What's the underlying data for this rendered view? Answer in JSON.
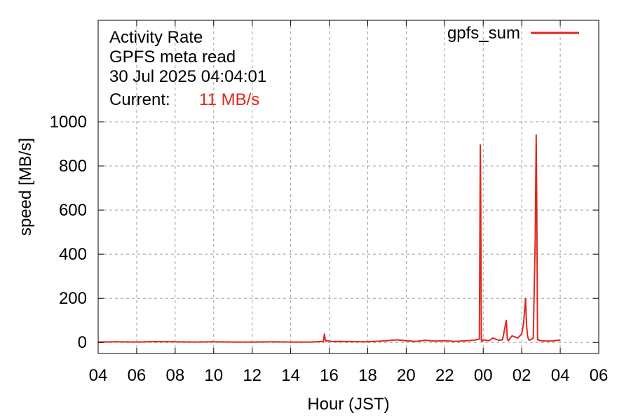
{
  "chart_data": {
    "type": "line",
    "title_lines": [
      "Activity Rate",
      "GPFS meta read",
      "30 Jul 2025 04:04:01"
    ],
    "current_label": "Current:",
    "current_value": "11 MB/s",
    "xlabel": "Hour (JST)",
    "ylabel": "speed [MB/s]",
    "xlim": [
      0,
      26
    ],
    "ylim": [
      -50,
      1460
    ],
    "x_ticks": [
      0,
      2,
      4,
      6,
      8,
      10,
      12,
      14,
      16,
      18,
      20,
      22,
      24,
      26
    ],
    "x_tick_labels": [
      "04",
      "06",
      "08",
      "10",
      "12",
      "14",
      "16",
      "18",
      "20",
      "22",
      "00",
      "02",
      "04",
      "06"
    ],
    "y_ticks": [
      0,
      200,
      400,
      600,
      800,
      1000
    ],
    "y_tick_labels": [
      "0",
      "200",
      "400",
      "600",
      "800",
      "1000"
    ],
    "grid": true,
    "legend_position": "top-right",
    "series_color": "#e0271c",
    "series": [
      {
        "name": "gpfs_sum",
        "x": [
          0,
          1,
          2,
          3,
          4,
          5,
          6,
          7,
          8,
          9,
          10,
          11,
          11.7,
          11.75,
          11.8,
          11.85,
          11.9,
          12.0,
          12.2,
          12.5,
          13,
          14,
          15,
          15.5,
          16,
          16.5,
          17,
          17.5,
          18,
          18.5,
          19,
          19.5,
          19.8,
          19.85,
          19.87,
          19.9,
          19.93,
          19.96,
          20.0,
          20.3,
          20.5,
          20.8,
          21.0,
          21.2,
          21.25,
          21.3,
          21.5,
          21.8,
          22.0,
          22.1,
          22.2,
          22.25,
          22.3,
          22.35,
          22.4,
          22.6,
          22.7,
          22.75,
          22.78,
          22.82,
          22.85,
          22.9,
          23.0,
          23.3,
          23.6,
          24.0
        ],
        "y": [
          2,
          3,
          2,
          4,
          3,
          2,
          3,
          2,
          2,
          3,
          2,
          2,
          5,
          38,
          12,
          5,
          8,
          6,
          4,
          5,
          4,
          3,
          8,
          12,
          8,
          5,
          10,
          6,
          8,
          5,
          7,
          10,
          15,
          895,
          640,
          10,
          5,
          8,
          12,
          8,
          20,
          10,
          12,
          100,
          15,
          8,
          30,
          20,
          40,
          90,
          200,
          80,
          30,
          15,
          10,
          20,
          470,
          940,
          630,
          12,
          15,
          10,
          8,
          6,
          7,
          11
        ]
      }
    ]
  }
}
